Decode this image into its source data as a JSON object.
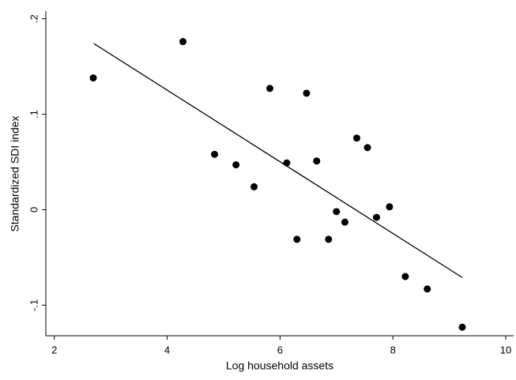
{
  "chart_data": {
    "type": "scatter",
    "xlabel": "Log household assets",
    "ylabel": "Standardized SDI index",
    "xlim": [
      1.85,
      10.14
    ],
    "ylim": [
      -0.132,
      0.208
    ],
    "xticks": [
      2,
      4,
      6,
      8,
      10
    ],
    "yticks": [
      {
        "value": -0.1,
        "label": "-.1"
      },
      0,
      {
        "value": 0.1,
        "label": ".1"
      },
      {
        "value": 0.2,
        "label": ".2"
      }
    ],
    "series": [
      {
        "type": "scatter",
        "color": "#000000",
        "x": [
          2.69,
          4.28,
          4.84,
          5.22,
          5.54,
          5.82,
          6.12,
          6.3,
          6.47,
          6.65,
          6.86,
          7.0,
          7.15,
          7.36,
          7.55,
          7.71,
          7.94,
          8.22,
          8.61,
          9.23
        ],
        "values": [
          0.138,
          0.176,
          0.058,
          0.047,
          0.024,
          0.127,
          0.049,
          -0.031,
          0.122,
          0.051,
          -0.031,
          -0.002,
          -0.013,
          0.075,
          0.065,
          -0.008,
          0.003,
          -0.07,
          -0.083,
          -0.123
        ]
      },
      {
        "type": "line",
        "color": "#000000",
        "x": [
          2.7,
          9.23
        ],
        "values": [
          0.174,
          -0.071
        ]
      }
    ]
  }
}
